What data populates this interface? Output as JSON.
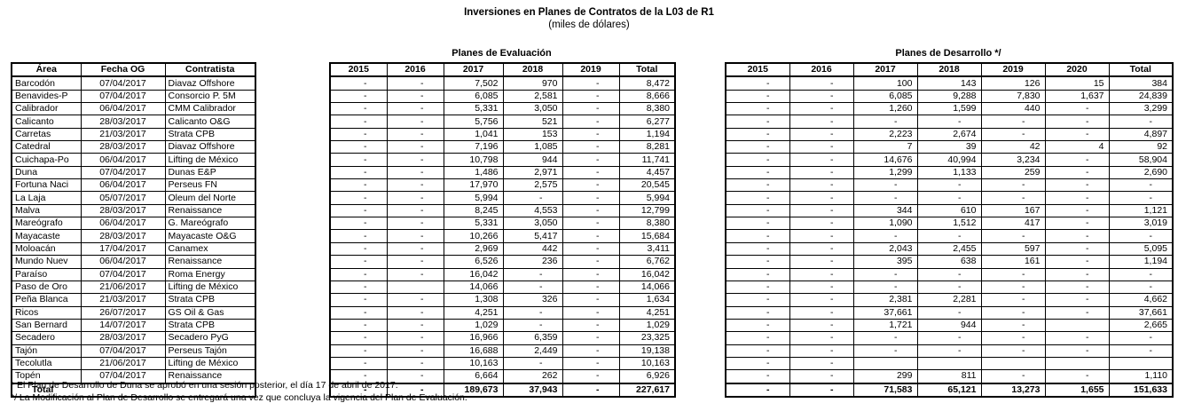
{
  "title": "Inversiones en Planes de Contratos de la L03 de R1",
  "subtitle": "(miles de dólares)",
  "left_table": {
    "headers": [
      "Área",
      "Fecha OG",
      "Contratista"
    ],
    "rows": [
      [
        "Barcodón",
        "07/04/2017",
        "Diavaz Offshore"
      ],
      [
        "Benavides-P",
        "07/04/2017",
        "Consorcio P. 5M"
      ],
      [
        "Calibrador",
        "06/04/2017",
        "CMM Calibrador"
      ],
      [
        "Calicanto",
        "28/03/2017",
        "Calicanto O&G"
      ],
      [
        "Carretas",
        "21/03/2017",
        "Strata CPB"
      ],
      [
        "Catedral",
        "28/03/2017",
        "Diavaz Offshore"
      ],
      [
        "Cuichapa-Po",
        "06/04/2017",
        "Lifting de México"
      ],
      [
        "Duna",
        "07/04/2017",
        "Dunas E&P"
      ],
      [
        "Fortuna Naci",
        "06/04/2017",
        "Perseus FN"
      ],
      [
        "La Laja",
        "05/07/2017",
        "Oleum del Norte"
      ],
      [
        "Malva",
        "28/03/2017",
        "Renaissance"
      ],
      [
        "Mareógrafo",
        "06/04/2017",
        "G. Mareógrafo"
      ],
      [
        "Mayacaste",
        "28/03/2017",
        "Mayacaste O&G"
      ],
      [
        "Moloacán",
        "17/04/2017",
        "Canamex"
      ],
      [
        "Mundo Nuev",
        "06/04/2017",
        "Renaissance"
      ],
      [
        "Paraíso",
        "07/04/2017",
        "Roma Energy"
      ],
      [
        "Paso de Oro",
        "21/06/2017",
        "Lifting de México"
      ],
      [
        "Peña Blanca",
        "21/03/2017",
        "Strata CPB"
      ],
      [
        "Ricos",
        "26/07/2017",
        "GS Oil & Gas"
      ],
      [
        "San Bernard",
        "14/07/2017",
        "Strata CPB"
      ],
      [
        "Secadero",
        "28/03/2017",
        "Secadero PyG"
      ],
      [
        "Tajón",
        "07/04/2017",
        "Perseus Tajón"
      ],
      [
        "Tecolutla",
        "21/06/2017",
        "Lifting de México"
      ],
      [
        "Topén",
        "07/04/2017",
        "Renaissance"
      ]
    ],
    "total_label": "Total"
  },
  "evaluacion": {
    "title": "Planes de Evaluación",
    "headers": [
      "2015",
      "2016",
      "2017",
      "2018",
      "2019",
      "Total"
    ],
    "rows": [
      [
        "-",
        "-",
        "7,502",
        "970",
        "-",
        "8,472"
      ],
      [
        "-",
        "-",
        "6,085",
        "2,581",
        "-",
        "8,666"
      ],
      [
        "-",
        "-",
        "5,331",
        "3,050",
        "-",
        "8,380"
      ],
      [
        "-",
        "-",
        "5,756",
        "521",
        "-",
        "6,277"
      ],
      [
        "-",
        "-",
        "1,041",
        "153",
        "-",
        "1,194"
      ],
      [
        "-",
        "-",
        "7,196",
        "1,085",
        "-",
        "8,281"
      ],
      [
        "-",
        "-",
        "10,798",
        "944",
        "-",
        "11,741"
      ],
      [
        "-",
        "-",
        "1,486",
        "2,971",
        "-",
        "4,457"
      ],
      [
        "-",
        "-",
        "17,970",
        "2,575",
        "-",
        "20,545"
      ],
      [
        "-",
        "-",
        "5,994",
        "-",
        "-",
        "5,994"
      ],
      [
        "-",
        "-",
        "8,245",
        "4,553",
        "-",
        "12,799"
      ],
      [
        "-",
        "-",
        "5,331",
        "3,050",
        "-",
        "8,380"
      ],
      [
        "-",
        "-",
        "10,266",
        "5,417",
        "-",
        "15,684"
      ],
      [
        "-",
        "-",
        "2,969",
        "442",
        "-",
        "3,411"
      ],
      [
        "-",
        "-",
        "6,526",
        "236",
        "-",
        "6,762"
      ],
      [
        "-",
        "-",
        "16,042",
        "-",
        "-",
        "16,042"
      ],
      [
        "-",
        "",
        "14,066",
        "-",
        "-",
        "14,066"
      ],
      [
        "-",
        "-",
        "1,308",
        "326",
        "-",
        "1,634"
      ],
      [
        "-",
        "-",
        "4,251",
        "-",
        "-",
        "4,251"
      ],
      [
        "-",
        "-",
        "1,029",
        "-",
        "-",
        "1,029"
      ],
      [
        "-",
        "-",
        "16,966",
        "6,359",
        "-",
        "23,325"
      ],
      [
        "-",
        "-",
        "16,688",
        "2,449",
        "-",
        "19,138"
      ],
      [
        "-",
        "-",
        "10,163",
        "-",
        "-",
        "10,163"
      ],
      [
        "-",
        "-",
        "6,664",
        "262",
        "-",
        "6,926"
      ]
    ],
    "total": [
      "-",
      "-",
      "189,673",
      "37,943",
      "-",
      "227,617"
    ]
  },
  "desarrollo": {
    "title": "Planes de Desarrollo */",
    "headers": [
      "2015",
      "2016",
      "2017",
      "2018",
      "2019",
      "2020",
      "Total"
    ],
    "rows": [
      [
        "-",
        "-",
        "100",
        "143",
        "126",
        "15",
        "384"
      ],
      [
        "-",
        "-",
        "6,085",
        "9,288",
        "7,830",
        "1,637",
        "24,839"
      ],
      [
        "-",
        "-",
        "1,260",
        "1,599",
        "440",
        "-",
        "3,299"
      ],
      [
        "-",
        "-",
        "-",
        "-",
        "-",
        "-",
        "-"
      ],
      [
        "-",
        "-",
        "2,223",
        "2,674",
        "-",
        "-",
        "4,897"
      ],
      [
        "-",
        "-",
        "7",
        "39",
        "42",
        "4",
        "92"
      ],
      [
        "-",
        "-",
        "14,676",
        "40,994",
        "3,234",
        "-",
        "58,904"
      ],
      [
        "-",
        "-",
        "1,299",
        "1,133",
        "259",
        "-",
        "2,690"
      ],
      [
        "-",
        "-",
        "-",
        "-",
        "-",
        "-",
        "-"
      ],
      [
        "-",
        "-",
        "-",
        "-",
        "-",
        "-",
        "-"
      ],
      [
        "-",
        "-",
        "344",
        "610",
        "167",
        "-",
        "1,121"
      ],
      [
        "-",
        "-",
        "1,090",
        "1,512",
        "417",
        "-",
        "3,019"
      ],
      [
        "-",
        "-",
        "-",
        "-",
        "-",
        "-",
        "-"
      ],
      [
        "-",
        "-",
        "2,043",
        "2,455",
        "597",
        "-",
        "5,095"
      ],
      [
        "-",
        "-",
        "395",
        "638",
        "161",
        "-",
        "1,194"
      ],
      [
        "-",
        "-",
        "-",
        "-",
        "-",
        "-",
        "-"
      ],
      [
        "-",
        "-",
        "-",
        "-",
        "-",
        "-",
        "-"
      ],
      [
        "-",
        "-",
        "2,381",
        "2,281",
        "-",
        "-",
        "4,662"
      ],
      [
        "-",
        "-",
        "37,661",
        "-",
        "-",
        "-",
        "37,661"
      ],
      [
        "-",
        "-",
        "1,721",
        "944",
        "-",
        "",
        "2,665"
      ],
      [
        "-",
        "-",
        "-",
        "-",
        "-",
        "-",
        "-"
      ],
      [
        "-",
        "-",
        "-",
        "-",
        "-",
        "-",
        "-"
      ],
      [
        "-",
        "-",
        "",
        "",
        "",
        "",
        ""
      ],
      [
        "-",
        "-",
        "299",
        "811",
        "-",
        "-",
        "1,110"
      ]
    ],
    "total": [
      "-",
      "-",
      "71,583",
      "65,121",
      "13,273",
      "1,655",
      "151,633"
    ]
  },
  "footnotes": [
    "* El Plan de Desarrollo de Duna se aprobó en una sesión posterior, el día 17 de abril de 2017.",
    "*/ La Modificación al Plan de Desarrollo se entregará una vez que concluya la vigencia del Plan de Evaluación."
  ]
}
